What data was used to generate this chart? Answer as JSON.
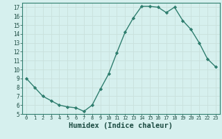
{
  "x": [
    0,
    1,
    2,
    3,
    4,
    5,
    6,
    7,
    8,
    9,
    10,
    11,
    12,
    13,
    14,
    15,
    16,
    17,
    18,
    19,
    20,
    21,
    22,
    23
  ],
  "y": [
    9.0,
    8.0,
    7.0,
    6.5,
    6.0,
    5.8,
    5.7,
    5.3,
    6.0,
    7.8,
    9.5,
    11.9,
    14.2,
    15.8,
    17.1,
    17.1,
    17.0,
    16.4,
    17.0,
    15.5,
    14.5,
    13.0,
    11.2,
    10.3
  ],
  "line_color": "#2e7d6e",
  "marker": "D",
  "markersize": 2.2,
  "bg_color": "#d6f0ee",
  "grid_color": "#c8e0dc",
  "xlabel": "Humidex (Indice chaleur)",
  "ylim": [
    5,
    17.5
  ],
  "xlim": [
    -0.5,
    23.5
  ],
  "yticks": [
    5,
    6,
    7,
    8,
    9,
    10,
    11,
    12,
    13,
    14,
    15,
    16,
    17
  ],
  "xticks": [
    0,
    1,
    2,
    3,
    4,
    5,
    6,
    7,
    8,
    9,
    10,
    11,
    12,
    13,
    14,
    15,
    16,
    17,
    18,
    19,
    20,
    21,
    22,
    23
  ],
  "axis_color": "#2e7d6e",
  "tick_color": "#1a4a40",
  "xlabel_fontsize": 7.5,
  "tick_fontsize_x": 5.0,
  "tick_fontsize_y": 5.5,
  "linewidth": 1.0
}
